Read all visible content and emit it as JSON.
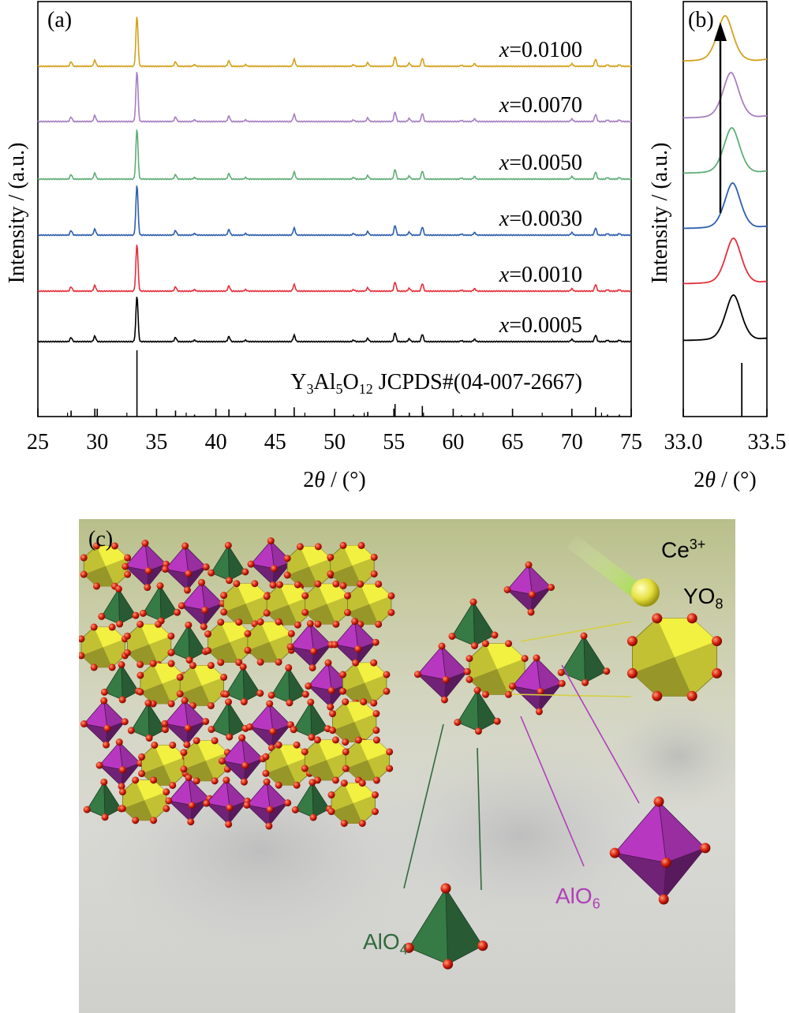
{
  "chart_data": [
    {
      "panel_label": "(a)",
      "type": "line",
      "xlabel_prefix": "2",
      "xlabel_symbol": "θ",
      "xlabel_suffix": " / (°)",
      "ylabel": "Intensity / (a.u.)",
      "xlim": [
        25,
        75
      ],
      "xticks": [
        25,
        30,
        35,
        40,
        45,
        50,
        55,
        60,
        65,
        70,
        75
      ],
      "reference_label": {
        "Y": "Y",
        "s1": "3",
        "Al": "Al",
        "s2": "5",
        "O": "O",
        "s3": "12",
        "rest": " JCPDS#(04-007-2667)"
      },
      "reference_peaks": [
        {
          "x": 27.8,
          "rel": 0.09
        },
        {
          "x": 29.8,
          "rel": 0.12
        },
        {
          "x": 33.35,
          "rel": 1.0
        },
        {
          "x": 36.6,
          "rel": 0.09
        },
        {
          "x": 38.2,
          "rel": 0.03
        },
        {
          "x": 41.1,
          "rel": 0.11
        },
        {
          "x": 42.5,
          "rel": 0.03
        },
        {
          "x": 46.6,
          "rel": 0.14
        },
        {
          "x": 51.6,
          "rel": 0.03
        },
        {
          "x": 52.8,
          "rel": 0.07
        },
        {
          "x": 55.1,
          "rel": 0.19
        },
        {
          "x": 56.3,
          "rel": 0.06
        },
        {
          "x": 57.4,
          "rel": 0.16
        },
        {
          "x": 60.7,
          "rel": 0.02
        },
        {
          "x": 61.8,
          "rel": 0.05
        },
        {
          "x": 70.0,
          "rel": 0.05
        },
        {
          "x": 72.0,
          "rel": 0.14
        },
        {
          "x": 73.0,
          "rel": 0.03
        },
        {
          "x": 74.0,
          "rel": 0.03
        }
      ],
      "series": [
        {
          "name": "0.0005",
          "color": "#000000"
        },
        {
          "name": "0.0010",
          "color": "#e5303c"
        },
        {
          "name": "0.0030",
          "color": "#2e5fb0"
        },
        {
          "name": "0.0050",
          "color": "#5fae76"
        },
        {
          "name": "0.0070",
          "color": "#a67fc0"
        },
        {
          "name": "0.0100",
          "color": "#d3a21c"
        }
      ],
      "series_label_prefix": "x",
      "series_label_sep": "="
    },
    {
      "panel_label": "(b)",
      "type": "line",
      "xlabel_prefix": "2",
      "xlabel_symbol": "θ",
      "xlabel_suffix": " / (°)",
      "ylabel": "Intensity / (a.u.)",
      "xlim": [
        33.0,
        33.5
      ],
      "xtick_labels": [
        "33.0",
        "33.5"
      ],
      "reference_peak_x": 33.35,
      "peak_positions": [
        33.3,
        33.3,
        33.295,
        33.29,
        33.285,
        33.25
      ],
      "arrow": "upward shift to lower angle"
    }
  ],
  "panel_c": {
    "label": "(c)",
    "ions": {
      "ce": {
        "text": "Ce",
        "sup": "3+"
      },
      "yo8": {
        "text": "YO",
        "sub": "8"
      },
      "alo6": {
        "text": "AlO",
        "sub": "6"
      },
      "alo4": {
        "text": "AlO",
        "sub": "4"
      }
    },
    "colors": {
      "YO8": "#d8d63a",
      "AlO6": "#a030a8",
      "AlO4": "#2f6a3c",
      "oxygen": "#d42010",
      "Ce3+": "#e8e24a"
    }
  }
}
